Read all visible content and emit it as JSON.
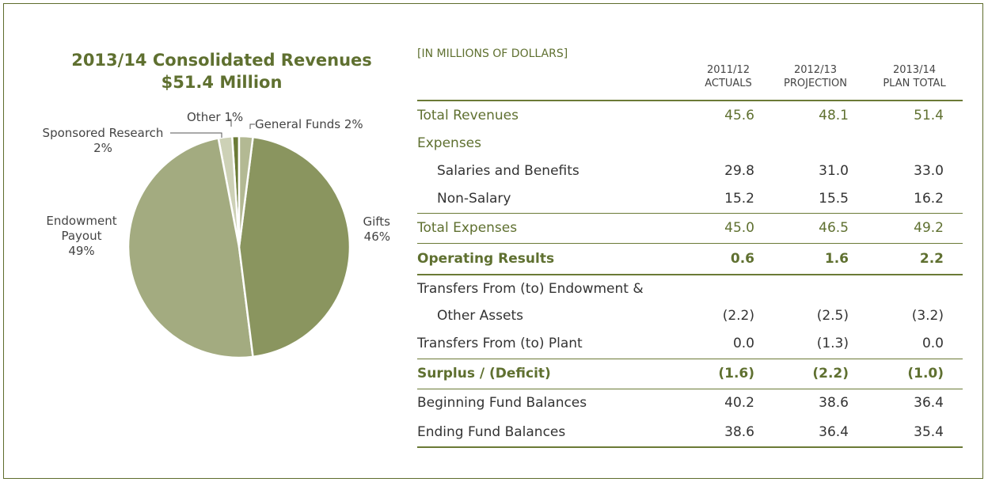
{
  "chart_data": {
    "type": "pie",
    "title": "2013/14 Consolidated Revenues",
    "subtitle": "$51.4 Million",
    "categories": [
      "General Funds",
      "Gifts",
      "Endowment Payout",
      "Sponsored Research",
      "Other"
    ],
    "values": [
      2,
      46,
      49,
      2,
      1
    ],
    "value_labels": [
      "2%",
      "46%",
      "49%",
      "2%",
      "1%"
    ],
    "colors": [
      "#b3b993",
      "#8a955f",
      "#a3ab80",
      "#cdd1b6",
      "#6b7b36"
    ]
  },
  "table": {
    "caption": "[IN MILLIONS OF DOLLARS]",
    "columns": [
      [
        "2011/12",
        "ACTUALS"
      ],
      [
        "2012/13",
        "PROJECTION"
      ],
      [
        "2013/14",
        "PLAN TOTAL"
      ]
    ],
    "rows": [
      [
        "Total Revenues",
        "45.6",
        "48.1",
        "51.4"
      ],
      [
        "Expenses"
      ],
      [
        "Salaries and Benefits",
        "29.8",
        "31.0",
        "33.0"
      ],
      [
        "Non-Salary",
        "15.2",
        "15.5",
        "16.2"
      ],
      [
        "Total Expenses",
        "45.0",
        "46.5",
        "49.2"
      ],
      [
        "Operating Results",
        "0.6",
        "1.6",
        "2.2"
      ],
      [
        "Transfers From (to) Endowment &"
      ],
      [
        "Other Assets",
        "(2.2)",
        "(2.5)",
        "(3.2)"
      ],
      [
        "Transfers From (to) Plant",
        "0.0",
        "(1.3)",
        "0.0"
      ],
      [
        "Surplus / (Deficit)",
        "(1.6)",
        "(2.2)",
        "(1.0)"
      ],
      [
        "Beginning Fund Balances",
        "40.2",
        "38.6",
        "36.4"
      ],
      [
        "Ending Fund Balances",
        "38.6",
        "36.4",
        "35.4"
      ]
    ]
  }
}
